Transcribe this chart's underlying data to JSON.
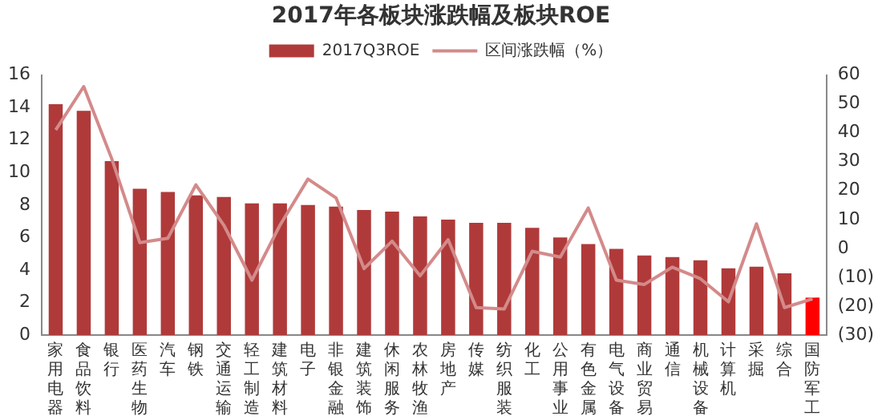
{
  "chart_data": {
    "type": "bar",
    "title": "2017年各板块涨跌幅及板块ROE",
    "categories": [
      "家用电器",
      "食品饮料",
      "银行",
      "医药生物",
      "汽车",
      "钢铁",
      "交通运输",
      "轻工制造",
      "建筑材料",
      "电子",
      "非银金融",
      "建筑装饰",
      "休闲服务",
      "农林牧渔",
      "房地产",
      "传媒",
      "纺织服装",
      "化工",
      "公用事业",
      "有色金属",
      "电气设备",
      "商业贸易",
      "通信",
      "机械设备",
      "计算机",
      "采掘",
      "综合",
      "国防军工"
    ],
    "series": [
      {
        "name": "2017Q3ROE",
        "color": "#b03a3a",
        "colors": [
          "#b03a3a",
          "#b03a3a",
          "#b03a3a",
          "#b03a3a",
          "#b03a3a",
          "#b03a3a",
          "#b03a3a",
          "#b03a3a",
          "#b03a3a",
          "#b03a3a",
          "#b03a3a",
          "#b03a3a",
          "#b03a3a",
          "#b03a3a",
          "#b03a3a",
          "#b03a3a",
          "#b03a3a",
          "#b03a3a",
          "#b03a3a",
          "#b03a3a",
          "#b03a3a",
          "#b03a3a",
          "#b03a3a",
          "#b03a3a",
          "#b03a3a",
          "#b03a3a",
          "#b03a3a",
          "#ff0000"
        ],
        "values": [
          14.2,
          13.8,
          10.7,
          9.0,
          8.8,
          8.6,
          8.5,
          8.1,
          8.1,
          8.0,
          7.9,
          7.7,
          7.6,
          7.3,
          7.1,
          6.9,
          6.9,
          6.6,
          6.0,
          5.6,
          5.3,
          4.9,
          4.8,
          4.6,
          4.1,
          4.2,
          3.8,
          2.3
        ]
      },
      {
        "name": "区间涨跌幅（%）",
        "type": "line",
        "axis": "y2",
        "color": "#d48a8a",
        "values": [
          41,
          56,
          31,
          2,
          3.5,
          22,
          8,
          -11,
          8,
          24,
          17.5,
          -7,
          2.5,
          -9.5,
          3,
          -20.5,
          -21,
          -1,
          -3,
          14,
          -11,
          -12.5,
          -6.5,
          -10.5,
          -18.5,
          8.5,
          -20.5,
          -17.5
        ]
      }
    ],
    "ylim": [
      0,
      16
    ],
    "yticks": [
      0,
      2,
      4,
      6,
      8,
      10,
      12,
      14,
      16
    ],
    "y2lim": [
      -30,
      60
    ],
    "y2ticks": [
      {
        "value": -30,
        "label": "(30)"
      },
      {
        "value": -20,
        "label": "(20)"
      },
      {
        "value": -10,
        "label": "(10)"
      },
      0,
      10,
      20,
      30,
      40,
      50,
      60
    ],
    "grid": false,
    "legend": "top",
    "marker": "none"
  }
}
